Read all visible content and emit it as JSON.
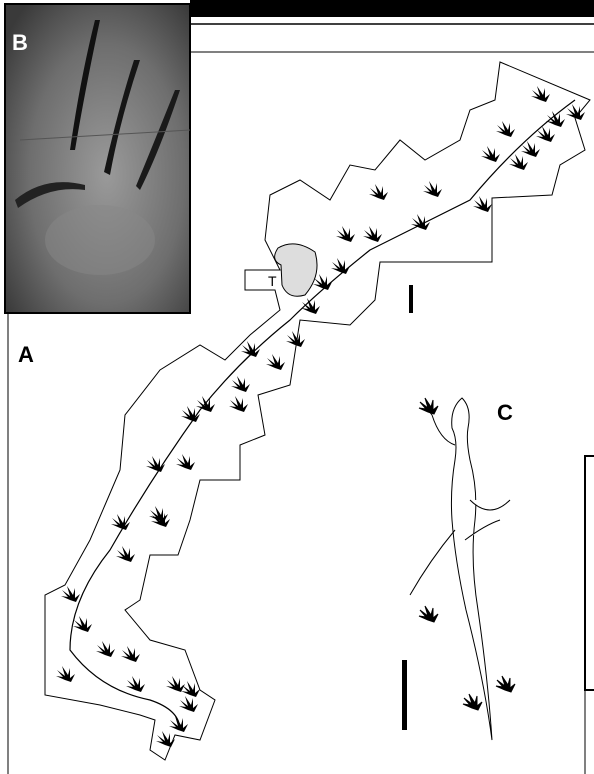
{
  "panel_labels": {
    "photo": "B",
    "trackway": "A",
    "reconstruction": "C"
  },
  "map_label": "T"
}
